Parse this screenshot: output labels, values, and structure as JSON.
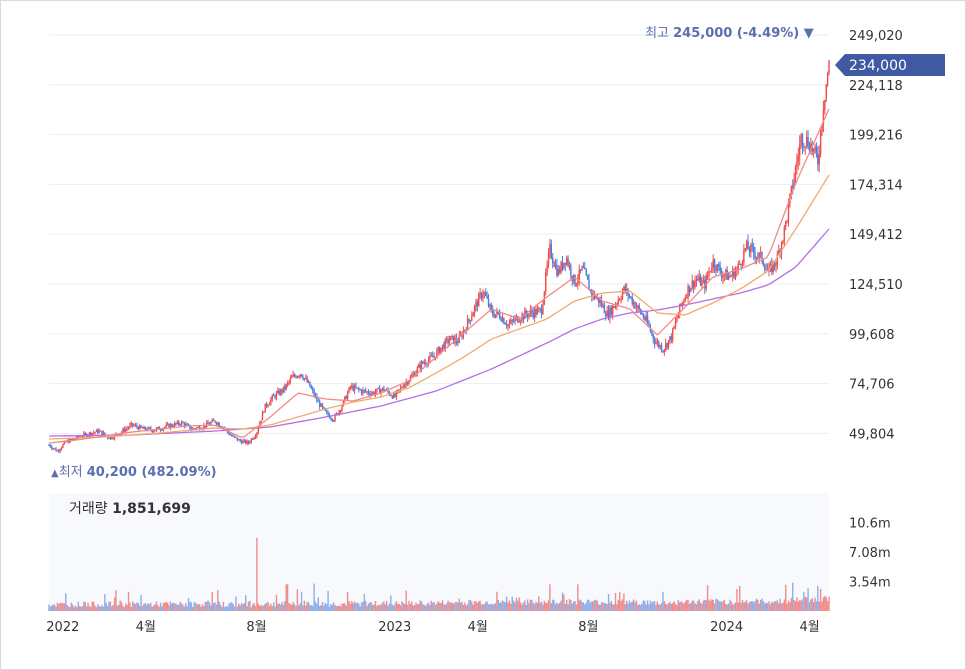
{
  "chart_data": [
    {
      "type": "candlestick",
      "y_ticks": [
        "249,020",
        "224,118",
        "199,216",
        "174,314",
        "149,412",
        "124,510",
        "99,608",
        "74,706",
        "49,804"
      ],
      "y_tick_values": [
        249020,
        224118,
        199216,
        174314,
        149412,
        124510,
        99608,
        74706,
        49804
      ],
      "ylim": [
        35000,
        255000
      ],
      "x_ticks": [
        "2022",
        "4월",
        "8월",
        "2023",
        "4월",
        "8월",
        "2024",
        "4월"
      ],
      "x_tick_positions": [
        0.5,
        3.5,
        7.5,
        12.5,
        15.5,
        19.5,
        24.5,
        27.5
      ],
      "x_range_months": [
        0,
        28.2
      ],
      "current_price": {
        "label": "234,000",
        "value": 234000
      },
      "high_marker": {
        "prefix": "최고",
        "value_text": "245,000 (-4.49%)",
        "arrow": "▼",
        "value": 245000
      },
      "low_marker": {
        "prefix": "최저",
        "value_text": "40,200 (482.09%)",
        "arrow": "▲",
        "value": 40200
      },
      "price_path": [
        [
          0,
          44000
        ],
        [
          0.3,
          41000
        ],
        [
          0.6,
          45500
        ],
        [
          1.0,
          47500
        ],
        [
          1.4,
          49500
        ],
        [
          1.8,
          51000
        ],
        [
          2.2,
          47500
        ],
        [
          2.6,
          50500
        ],
        [
          3.0,
          54000
        ],
        [
          3.4,
          52000
        ],
        [
          3.8,
          51500
        ],
        [
          4.3,
          53500
        ],
        [
          4.8,
          55000
        ],
        [
          5.2,
          52000
        ],
        [
          5.6,
          53500
        ],
        [
          6.0,
          56000
        ],
        [
          6.3,
          53000
        ],
        [
          6.6,
          48500
        ],
        [
          6.9,
          46000
        ],
        [
          7.2,
          45000
        ],
        [
          7.5,
          50000
        ],
        [
          7.8,
          63000
        ],
        [
          8.1,
          68000
        ],
        [
          8.5,
          72000
        ],
        [
          8.8,
          78000
        ],
        [
          9.1,
          80000
        ],
        [
          9.4,
          74000
        ],
        [
          9.7,
          66000
        ],
        [
          10.0,
          60000
        ],
        [
          10.3,
          57000
        ],
        [
          10.6,
          64000
        ],
        [
          10.9,
          73000
        ],
        [
          11.3,
          71000
        ],
        [
          11.7,
          70000
        ],
        [
          12.1,
          72000
        ],
        [
          12.5,
          68000
        ],
        [
          12.8,
          74000
        ],
        [
          13.1,
          78000
        ],
        [
          13.5,
          85000
        ],
        [
          13.9,
          88000
        ],
        [
          14.2,
          93000
        ],
        [
          14.5,
          97000
        ],
        [
          14.8,
          96000
        ],
        [
          15.1,
          104000
        ],
        [
          15.4,
          113000
        ],
        [
          15.7,
          121000
        ],
        [
          16.0,
          110000
        ],
        [
          16.3,
          109000
        ],
        [
          16.6,
          104000
        ],
        [
          17.0,
          108000
        ],
        [
          17.4,
          110000
        ],
        [
          17.8,
          111000
        ],
        [
          18.1,
          142000
        ],
        [
          18.4,
          130000
        ],
        [
          18.7,
          138000
        ],
        [
          19.0,
          125000
        ],
        [
          19.3,
          132000
        ],
        [
          19.6,
          120000
        ],
        [
          19.9,
          116000
        ],
        [
          20.2,
          109000
        ],
        [
          20.5,
          115000
        ],
        [
          20.8,
          122000
        ],
        [
          21.0,
          118000
        ],
        [
          21.3,
          112000
        ],
        [
          21.6,
          106000
        ],
        [
          21.9,
          96000
        ],
        [
          22.2,
          92000
        ],
        [
          22.5,
          98000
        ],
        [
          22.8,
          112000
        ],
        [
          23.1,
          122000
        ],
        [
          23.4,
          127000
        ],
        [
          23.7,
          124000
        ],
        [
          24.0,
          136000
        ],
        [
          24.3,
          130000
        ],
        [
          24.6,
          128000
        ],
        [
          24.9,
          132000
        ],
        [
          25.2,
          143000
        ],
        [
          25.5,
          140000
        ],
        [
          25.8,
          137000
        ],
        [
          26.0,
          130000
        ],
        [
          26.3,
          136000
        ],
        [
          26.6,
          152000
        ],
        [
          26.9,
          175000
        ],
        [
          27.2,
          198000
        ],
        [
          27.5,
          195000
        ],
        [
          27.8,
          186000
        ],
        [
          28.0,
          215000
        ],
        [
          28.1,
          225000
        ],
        [
          28.2,
          234000
        ]
      ],
      "ma_short": [
        [
          0,
          45000
        ],
        [
          1,
          46500
        ],
        [
          2,
          48500
        ],
        [
          3,
          50500
        ],
        [
          4,
          52000
        ],
        [
          5,
          53500
        ],
        [
          6,
          54000
        ],
        [
          7,
          47500
        ],
        [
          8,
          58000
        ],
        [
          9,
          70000
        ],
        [
          10,
          67000
        ],
        [
          11,
          66000
        ],
        [
          12,
          70000
        ],
        [
          13,
          76000
        ],
        [
          14,
          88000
        ],
        [
          15,
          100000
        ],
        [
          16,
          112000
        ],
        [
          17,
          107000
        ],
        [
          18,
          118000
        ],
        [
          19,
          128000
        ],
        [
          20,
          116000
        ],
        [
          21,
          112000
        ],
        [
          22,
          99000
        ],
        [
          23,
          113000
        ],
        [
          24,
          128000
        ],
        [
          25,
          132000
        ],
        [
          26,
          138000
        ],
        [
          27,
          175000
        ],
        [
          28.2,
          212000
        ]
      ],
      "ma_mid": [
        [
          0,
          47000
        ],
        [
          2,
          48000
        ],
        [
          4,
          50000
        ],
        [
          6,
          52500
        ],
        [
          7,
          52000
        ],
        [
          8,
          54000
        ],
        [
          9,
          58000
        ],
        [
          10,
          62000
        ],
        [
          11,
          65500
        ],
        [
          12,
          68000
        ],
        [
          13,
          72500
        ],
        [
          14,
          80000
        ],
        [
          15,
          88000
        ],
        [
          16,
          97000
        ],
        [
          17,
          102000
        ],
        [
          18,
          107000
        ],
        [
          19,
          116000
        ],
        [
          20,
          120000
        ],
        [
          21,
          121000
        ],
        [
          22,
          110000
        ],
        [
          23,
          109000
        ],
        [
          24,
          115000
        ],
        [
          25,
          122000
        ],
        [
          26,
          131000
        ],
        [
          27,
          152000
        ],
        [
          28.2,
          179000
        ]
      ],
      "ma_long": [
        [
          0,
          48500
        ],
        [
          3,
          49000
        ],
        [
          6,
          51000
        ],
        [
          8,
          53000
        ],
        [
          10,
          58000
        ],
        [
          12,
          63500
        ],
        [
          14,
          71000
        ],
        [
          16,
          82000
        ],
        [
          18,
          95000
        ],
        [
          19,
          102000
        ],
        [
          20,
          107000
        ],
        [
          21,
          110000
        ],
        [
          22,
          111500
        ],
        [
          23,
          114000
        ],
        [
          24,
          117000
        ],
        [
          25,
          120000
        ],
        [
          26,
          124000
        ],
        [
          27,
          133000
        ],
        [
          28.2,
          152000
        ]
      ],
      "colors": {
        "up": "#f24c4c",
        "down": "#4a7ddf",
        "ma_short": "#f28a8a",
        "ma_mid": "#f5a86b",
        "ma_long": "#b56de8",
        "price_tag": "#3f5aa3",
        "marker": "#5a6fb0"
      }
    },
    {
      "type": "bar",
      "label": "거래량",
      "current_value_text": "1,851,699",
      "y_ticks": [
        "10.6m",
        "7.08m",
        "3.54m"
      ],
      "y_tick_values": [
        10600000,
        7080000,
        3540000
      ],
      "ylim": [
        0,
        14160000
      ],
      "spikes": [
        {
          "x": 7.5,
          "value": 8800000,
          "up": true
        },
        {
          "x": 8.6,
          "value": 3200000,
          "up": true
        },
        {
          "x": 9.0,
          "value": 2600000,
          "up": false
        },
        {
          "x": 9.6,
          "value": 3300000,
          "up": false
        },
        {
          "x": 10.1,
          "value": 2400000,
          "up": true
        },
        {
          "x": 18.1,
          "value": 3200000,
          "up": true
        },
        {
          "x": 19.1,
          "value": 3200000,
          "up": false
        },
        {
          "x": 26.9,
          "value": 3400000,
          "up": true
        },
        {
          "x": 27.3,
          "value": 2300000,
          "up": false
        },
        {
          "x": 27.8,
          "value": 3000000,
          "up": true
        }
      ]
    }
  ]
}
